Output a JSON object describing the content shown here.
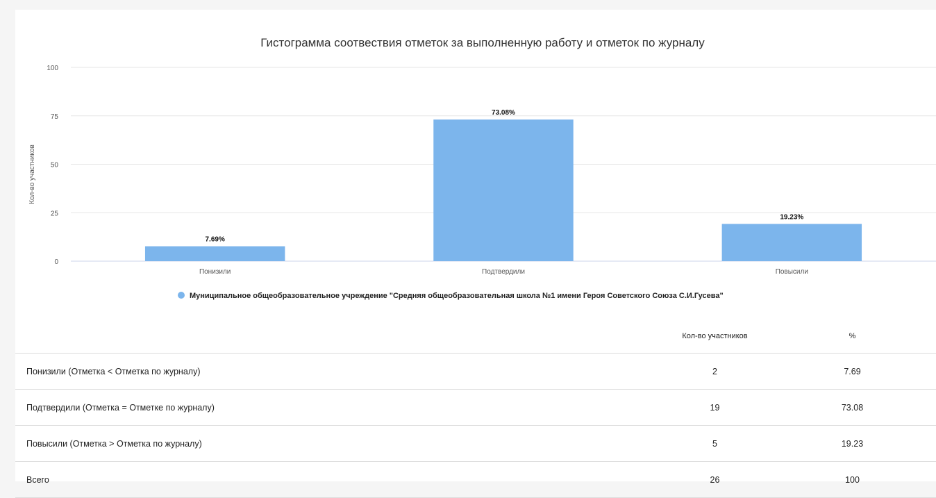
{
  "colors": {
    "bar": "#7cb5ec",
    "grid": "#e6e6e6",
    "axis_line": "#ccd6eb"
  },
  "chart_data": {
    "type": "bar",
    "title": "Гистограмма соотвествия отметок за выполненную работу и отметок по журналу",
    "ylabel": "Кол-во участников",
    "xlabel": "",
    "ylim": [
      0,
      100
    ],
    "yticks": [
      0,
      25,
      50,
      75,
      100
    ],
    "grid": true,
    "legend_position": "bottom-center",
    "categories": [
      "Понизили",
      "Подтвердили",
      "Повысили"
    ],
    "series": [
      {
        "name": "Муниципальное общеобразовательное учреждение \"Средняя общеобразовательная школа №1 имени Героя Советского Союза С.И.Гусева\"",
        "values": [
          7.69,
          73.08,
          19.23
        ],
        "data_labels": [
          "7.69%",
          "73.08%",
          "19.23%"
        ]
      }
    ]
  },
  "table": {
    "headers": [
      "",
      "Кол-во участников",
      "%"
    ],
    "rows": [
      {
        "label": "Понизили (Отметка < Отметка по журналу)",
        "count": "2",
        "pct": "7.69"
      },
      {
        "label": "Подтвердили (Отметка = Отметке по журналу)",
        "count": "19",
        "pct": "73.08"
      },
      {
        "label": "Повысили (Отметка > Отметка по журналу)",
        "count": "5",
        "pct": "19.23"
      },
      {
        "label": "Всего",
        "count": "26",
        "pct": "100"
      }
    ]
  }
}
